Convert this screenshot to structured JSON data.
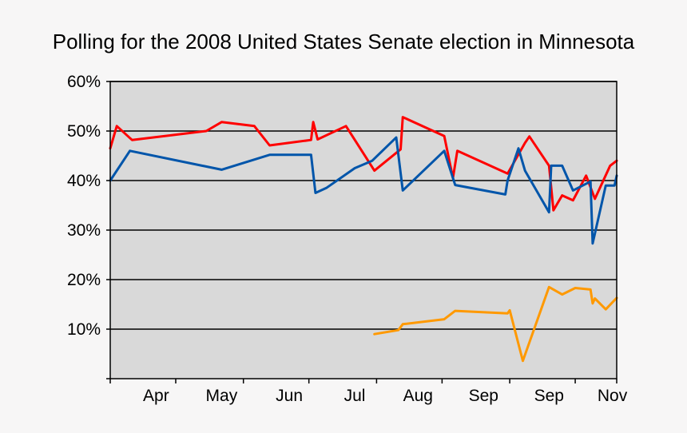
{
  "chart_data": {
    "type": "line",
    "title": "Polling for the 2008 United States Senate election in Minnesota",
    "xlabel": "",
    "ylabel": "",
    "xlim": [
      0,
      232
    ],
    "ylim": [
      0,
      60
    ],
    "grid": true,
    "colors": {
      "plot_bg": "#d9d9d9",
      "page_bg": "#f7f6f6",
      "gridline": "#000000",
      "series": [
        "#ff0000",
        "#0055aa",
        "#ff9900"
      ]
    },
    "y_ticks": [
      {
        "value": 10,
        "label": "10%"
      },
      {
        "value": 20,
        "label": "20%"
      },
      {
        "value": 30,
        "label": "30%"
      },
      {
        "value": 40,
        "label": "40%"
      },
      {
        "value": 50,
        "label": "50%"
      },
      {
        "value": 60,
        "label": "60%"
      }
    ],
    "x_ticks": [
      0,
      30,
      61,
      91,
      122,
      152,
      183,
      213,
      232
    ],
    "x_labels": [
      {
        "value": 21,
        "label": "Apr"
      },
      {
        "value": 51,
        "label": "May"
      },
      {
        "value": 82,
        "label": "Jun"
      },
      {
        "value": 112,
        "label": "Jul"
      },
      {
        "value": 141,
        "label": "Aug"
      },
      {
        "value": 171,
        "label": "Sep"
      },
      {
        "value": 201,
        "label": "Sep"
      },
      {
        "value": 230,
        "label": "Nov"
      }
    ],
    "series": [
      {
        "name": "Red",
        "points": [
          [
            0,
            46.5
          ],
          [
            3,
            51
          ],
          [
            10,
            48.2
          ],
          [
            44,
            50
          ],
          [
            51,
            51.8
          ],
          [
            66,
            51
          ],
          [
            73,
            47.1
          ],
          [
            92,
            48.2
          ],
          [
            93,
            51.8
          ],
          [
            95,
            48.3
          ],
          [
            108,
            51
          ],
          [
            121,
            42
          ],
          [
            133,
            46.3
          ],
          [
            134,
            52.8
          ],
          [
            153,
            49
          ],
          [
            157,
            40.5
          ],
          [
            159,
            46
          ],
          [
            182,
            41.4
          ],
          [
            190,
            47.6
          ],
          [
            192,
            48.9
          ],
          [
            201,
            43
          ],
          [
            203,
            34
          ],
          [
            207,
            37
          ],
          [
            212,
            36
          ],
          [
            218,
            41
          ],
          [
            222,
            36.3
          ],
          [
            229,
            43
          ],
          [
            232,
            44
          ]
        ]
      },
      {
        "name": "Blue",
        "points": [
          [
            0,
            40
          ],
          [
            9,
            46
          ],
          [
            51,
            42.2
          ],
          [
            73,
            45.2
          ],
          [
            92,
            45.2
          ],
          [
            94,
            37.5
          ],
          [
            99,
            38.5
          ],
          [
            112,
            42.5
          ],
          [
            120,
            44
          ],
          [
            131,
            48.7
          ],
          [
            134,
            38
          ],
          [
            153,
            46
          ],
          [
            158,
            39.1
          ],
          [
            181,
            37.2
          ],
          [
            182,
            40
          ],
          [
            187,
            46.5
          ],
          [
            190,
            42
          ],
          [
            201,
            33.6
          ],
          [
            202,
            43
          ],
          [
            207,
            43
          ],
          [
            212,
            38
          ],
          [
            220,
            39.8
          ],
          [
            221,
            27.3
          ],
          [
            227,
            39
          ],
          [
            231,
            39
          ],
          [
            232,
            41
          ]
        ]
      },
      {
        "name": "Orange",
        "points": [
          [
            121,
            9
          ],
          [
            132,
            9.8
          ],
          [
            134,
            11
          ],
          [
            153,
            12
          ],
          [
            158,
            13.7
          ],
          [
            182,
            13.2
          ],
          [
            183,
            13.8
          ],
          [
            189,
            3.6
          ],
          [
            201,
            18.5
          ],
          [
            207,
            17
          ],
          [
            213,
            18.3
          ],
          [
            220,
            18
          ],
          [
            221,
            15.2
          ],
          [
            222,
            16.2
          ],
          [
            227,
            14
          ],
          [
            232,
            16.3
          ]
        ]
      }
    ]
  }
}
